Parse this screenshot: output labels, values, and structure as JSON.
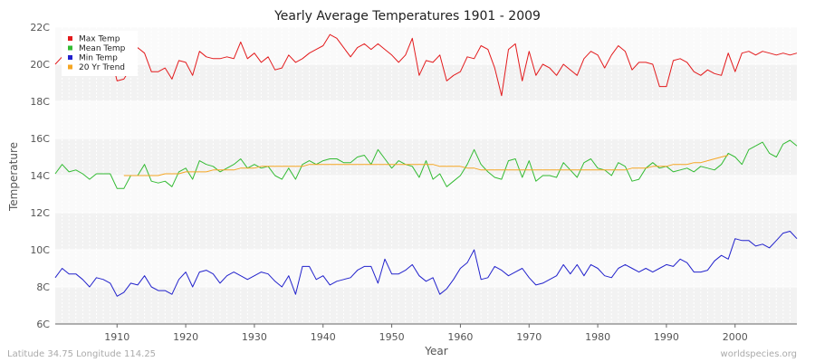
{
  "chart_data": {
    "type": "line",
    "title": "Yearly Average Temperatures 1901 - 2009",
    "xlabel": "Year",
    "ylabel": "Temperature",
    "xlim": [
      1901,
      2009
    ],
    "ylim": [
      6,
      22
    ],
    "x_ticks": [
      1910,
      1920,
      1930,
      1940,
      1950,
      1960,
      1970,
      1980,
      1990,
      2000
    ],
    "y_ticks": [
      6,
      8,
      10,
      12,
      14,
      16,
      18,
      20,
      22
    ],
    "y_tick_labels": [
      "6C",
      "8C",
      "10C",
      "12C",
      "14C",
      "16C",
      "18C",
      "20C",
      "22C"
    ],
    "grid": true,
    "legend_position": "top-left",
    "x_start": 1901,
    "series": [
      {
        "name": "Max Temp",
        "color": "#e31a1c",
        "values": [
          20.0,
          20.4,
          20.5,
          20.3,
          19.9,
          20.1,
          20.5,
          20.3,
          20.6,
          19.1,
          19.2,
          19.8,
          20.9,
          20.6,
          19.6,
          19.6,
          19.8,
          19.2,
          20.2,
          20.1,
          19.4,
          20.7,
          20.4,
          20.3,
          20.3,
          20.4,
          20.3,
          21.2,
          20.3,
          20.6,
          20.1,
          20.4,
          19.7,
          19.8,
          20.5,
          20.1,
          20.3,
          20.6,
          20.8,
          21.0,
          21.6,
          21.4,
          20.9,
          20.4,
          20.9,
          21.1,
          20.8,
          21.1,
          20.8,
          20.5,
          20.1,
          20.5,
          21.4,
          19.4,
          20.2,
          20.1,
          20.5,
          19.1,
          19.4,
          19.6,
          20.4,
          20.3,
          21.0,
          20.8,
          19.8,
          18.3,
          20.8,
          21.1,
          19.1,
          20.7,
          19.4,
          20.0,
          19.8,
          19.4,
          20.0,
          19.7,
          19.4,
          20.3,
          20.7,
          20.5,
          19.8,
          20.5,
          21.0,
          20.7,
          19.7,
          20.1,
          20.1,
          20.0,
          18.8,
          18.8,
          20.2,
          20.3,
          20.1,
          19.6,
          19.4,
          19.7,
          19.5,
          19.4,
          20.6,
          19.6,
          20.6,
          20.7,
          20.5,
          20.7,
          20.6,
          20.5,
          20.6,
          20.5,
          20.6
        ]
      },
      {
        "name": "Mean Temp",
        "color": "#33bb33",
        "values": [
          14.1,
          14.6,
          14.2,
          14.3,
          14.1,
          13.8,
          14.1,
          14.1,
          14.1,
          13.3,
          13.3,
          14.0,
          14.0,
          14.6,
          13.7,
          13.6,
          13.7,
          13.4,
          14.2,
          14.4,
          13.8,
          14.8,
          14.6,
          14.5,
          14.2,
          14.4,
          14.6,
          14.9,
          14.4,
          14.6,
          14.4,
          14.5,
          14.0,
          13.8,
          14.4,
          13.8,
          14.6,
          14.8,
          14.6,
          14.8,
          14.9,
          14.9,
          14.7,
          14.7,
          15.0,
          15.1,
          14.6,
          15.4,
          14.9,
          14.4,
          14.8,
          14.6,
          14.5,
          13.9,
          14.8,
          13.8,
          14.1,
          13.4,
          13.7,
          14.0,
          14.6,
          15.4,
          14.6,
          14.2,
          13.9,
          13.8,
          14.8,
          14.9,
          13.9,
          14.8,
          13.7,
          14.0,
          14.0,
          13.9,
          14.7,
          14.3,
          13.9,
          14.7,
          14.9,
          14.4,
          14.3,
          14.0,
          14.7,
          14.5,
          13.7,
          13.8,
          14.4,
          14.7,
          14.4,
          14.5,
          14.2,
          14.3,
          14.4,
          14.2,
          14.5,
          14.4,
          14.3,
          14.6,
          15.2,
          15.0,
          14.6,
          15.4,
          15.6,
          15.8,
          15.2,
          15.0,
          15.7,
          15.9,
          15.6
        ]
      },
      {
        "name": "Min Temp",
        "color": "#2222cc",
        "values": [
          8.5,
          9.0,
          8.7,
          8.7,
          8.4,
          8.0,
          8.5,
          8.4,
          8.2,
          7.5,
          7.7,
          8.2,
          8.1,
          8.6,
          8.0,
          7.8,
          7.8,
          7.6,
          8.4,
          8.8,
          8.0,
          8.8,
          8.9,
          8.7,
          8.2,
          8.6,
          8.8,
          8.6,
          8.4,
          8.6,
          8.8,
          8.7,
          8.3,
          8.0,
          8.6,
          7.6,
          9.1,
          9.1,
          8.4,
          8.6,
          8.1,
          8.3,
          8.4,
          8.5,
          8.9,
          9.1,
          9.1,
          8.2,
          9.5,
          8.7,
          8.7,
          8.9,
          9.2,
          8.6,
          8.3,
          8.5,
          7.6,
          7.9,
          8.4,
          9.0,
          9.3,
          10.0,
          8.4,
          8.5,
          9.1,
          8.9,
          8.6,
          8.8,
          9.0,
          8.5,
          8.1,
          8.2,
          8.4,
          8.6,
          9.2,
          8.7,
          9.2,
          8.6,
          9.2,
          9.0,
          8.6,
          8.5,
          9.0,
          9.2,
          9.0,
          8.8,
          9.0,
          8.8,
          9.0,
          9.2,
          9.1,
          9.5,
          9.3,
          8.8,
          8.8,
          8.9,
          9.4,
          9.7,
          9.5,
          10.6,
          10.5,
          10.5,
          10.2,
          10.3,
          10.1,
          10.5,
          10.9,
          11.0,
          10.6
        ]
      },
      {
        "name": "20 Yr Trend",
        "color": "#f5a623",
        "x_start": 1911,
        "values": [
          14.0,
          14.0,
          14.0,
          14.0,
          14.0,
          14.0,
          14.1,
          14.1,
          14.1,
          14.2,
          14.2,
          14.2,
          14.2,
          14.3,
          14.3,
          14.3,
          14.3,
          14.4,
          14.4,
          14.4,
          14.5,
          14.5,
          14.5,
          14.5,
          14.5,
          14.5,
          14.5,
          14.6,
          14.6,
          14.6,
          14.6,
          14.6,
          14.6,
          14.6,
          14.6,
          14.6,
          14.6,
          14.6,
          14.6,
          14.6,
          14.6,
          14.6,
          14.6,
          14.6,
          14.6,
          14.6,
          14.5,
          14.5,
          14.5,
          14.5,
          14.4,
          14.4,
          14.3,
          14.3,
          14.3,
          14.3,
          14.3,
          14.3,
          14.3,
          14.3,
          14.3,
          14.3,
          14.3,
          14.3,
          14.3,
          14.3,
          14.3,
          14.3,
          14.3,
          14.3,
          14.3,
          14.3,
          14.3,
          14.3,
          14.4,
          14.4,
          14.4,
          14.5,
          14.5,
          14.5,
          14.6,
          14.6,
          14.6,
          14.7,
          14.7,
          14.8,
          14.9,
          15.0,
          15.1
        ]
      }
    ]
  },
  "footer": {
    "location": "Latitude 34.75 Longitude 114.25",
    "source": "worldspecies.org"
  },
  "colors": {
    "band_dark": "#f2f2f2",
    "band_light": "#fafafa",
    "grid": "#ffffff"
  }
}
